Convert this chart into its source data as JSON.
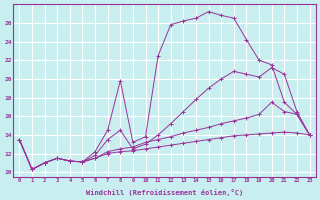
{
  "xlabel": "Windchill (Refroidissement éolien,°C)",
  "ylabel": "",
  "background_color": "#c8eef0",
  "grid_color": "#ffffff",
  "line_color": "#993399",
  "xlim": [
    -0.5,
    23.5
  ],
  "ylim": [
    9.5,
    28
  ],
  "yticks": [
    10,
    12,
    14,
    16,
    18,
    20,
    22,
    24,
    26
  ],
  "xticks": [
    0,
    1,
    2,
    3,
    4,
    5,
    6,
    7,
    8,
    9,
    10,
    11,
    12,
    13,
    14,
    15,
    16,
    17,
    18,
    19,
    20,
    21,
    22,
    23
  ],
  "series": [
    {
      "x": [
        0,
        1,
        2,
        3,
        4,
        5,
        6,
        7,
        8,
        9,
        10,
        11,
        12,
        13,
        14,
        15,
        16,
        17,
        18,
        19,
        20,
        21,
        22,
        23
      ],
      "y": [
        13.5,
        10.3,
        11.0,
        11.5,
        11.2,
        11.1,
        11.5,
        12.0,
        12.2,
        12.3,
        12.5,
        12.7,
        12.9,
        13.1,
        13.3,
        13.5,
        13.7,
        13.9,
        14.0,
        14.1,
        14.2,
        14.3,
        14.2,
        14.0
      ]
    },
    {
      "x": [
        0,
        1,
        2,
        3,
        4,
        5,
        6,
        7,
        8,
        9,
        10,
        11,
        12,
        13,
        14,
        15,
        16,
        17,
        18,
        19,
        20,
        21,
        22,
        23
      ],
      "y": [
        13.5,
        10.3,
        11.0,
        11.5,
        11.2,
        11.1,
        11.5,
        12.2,
        12.5,
        12.7,
        13.2,
        13.5,
        13.8,
        14.2,
        14.5,
        14.8,
        15.2,
        15.5,
        15.8,
        16.2,
        17.5,
        16.5,
        16.2,
        14.0
      ]
    },
    {
      "x": [
        0,
        1,
        2,
        3,
        4,
        5,
        6,
        7,
        8,
        9,
        10,
        11,
        12,
        13,
        14,
        15,
        16,
        17,
        18,
        19,
        20,
        21,
        22,
        23
      ],
      "y": [
        13.5,
        10.3,
        11.0,
        11.5,
        11.2,
        11.1,
        11.8,
        13.5,
        14.5,
        12.5,
        13.0,
        14.0,
        15.2,
        16.5,
        17.8,
        19.0,
        20.0,
        20.8,
        20.5,
        20.2,
        21.2,
        20.5,
        16.5,
        14.0
      ]
    },
    {
      "x": [
        0,
        1,
        2,
        3,
        4,
        5,
        6,
        7,
        8,
        9,
        10,
        11,
        12,
        13,
        14,
        15,
        16,
        17,
        18,
        19,
        20,
        21,
        22,
        23
      ],
      "y": [
        13.5,
        10.3,
        11.0,
        11.5,
        11.2,
        11.1,
        12.2,
        14.5,
        19.8,
        13.2,
        13.8,
        22.5,
        25.8,
        26.2,
        26.5,
        27.2,
        26.8,
        26.5,
        24.2,
        22.0,
        21.5,
        17.5,
        16.2,
        14.0
      ]
    }
  ]
}
